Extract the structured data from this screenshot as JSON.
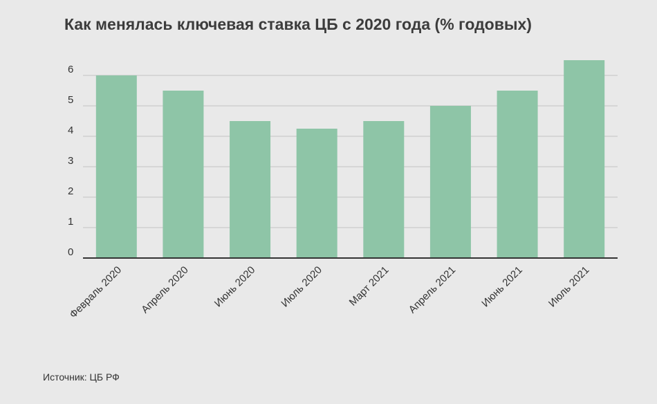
{
  "title": "Как менялась ключевая ставка ЦБ с 2020 года (% годовых)",
  "source": "Источник: ЦБ РФ",
  "colors": {
    "background": "#e9e9e9",
    "bar": "#8ec5a7",
    "grid": "#c4c4c4",
    "axis": "#333333",
    "text": "#333333"
  },
  "chart_data": {
    "type": "bar",
    "title": "Как менялась ключевая ставка ЦБ с 2020 года (% годовых)",
    "xlabel": "",
    "ylabel": "",
    "categories": [
      "Февраль 2020",
      "Апрель 2020",
      "Июнь 2020",
      "Июль 2020",
      "Март 2021",
      "Апрель 2021",
      "Июнь 2021",
      "Июль 2021"
    ],
    "values": [
      6,
      5.5,
      4.5,
      4.25,
      4.5,
      5,
      5.5,
      6.5
    ],
    "ylim": [
      0,
      6
    ],
    "yticks": [
      "0",
      "1",
      "2",
      "3",
      "4",
      "5",
      "6"
    ],
    "grid": true,
    "legend": "none"
  }
}
